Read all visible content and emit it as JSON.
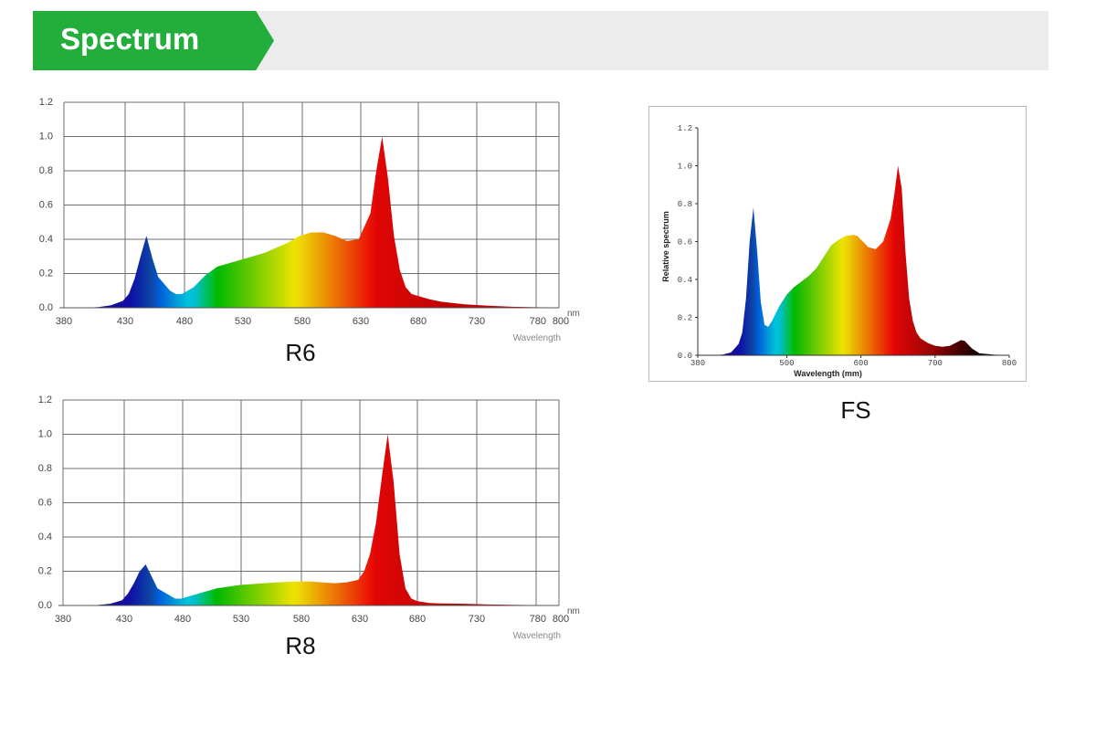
{
  "header": {
    "title": "Spectrum"
  },
  "charts": {
    "r6": {
      "caption": "R6",
      "unit": "nm",
      "xlabel": "Wavelength"
    },
    "r8": {
      "caption": "R8",
      "unit": "nm",
      "xlabel": "Wavelength"
    },
    "fs": {
      "caption": "FS",
      "xlabel": "Wavelength (mm)",
      "ylabel": "Relative spectrum"
    }
  },
  "chart_data": [
    {
      "id": "r6",
      "type": "area",
      "title": "R6",
      "xlabel": "Wavelength",
      "x_unit": "nm",
      "ylabel": "",
      "xlim": [
        380,
        800
      ],
      "ylim": [
        0,
        1.2
      ],
      "xticks": [
        "380",
        "430",
        "480",
        "530",
        "580",
        "630",
        "680",
        "730",
        "780",
        "800"
      ],
      "yticks": [
        "0.0",
        "0.2",
        "0.4",
        "0.6",
        "0.8",
        "1.0",
        "1.2"
      ],
      "grid": true,
      "x": [
        380,
        400,
        410,
        420,
        430,
        435,
        440,
        445,
        450,
        455,
        460,
        465,
        470,
        475,
        480,
        490,
        500,
        510,
        520,
        530,
        540,
        550,
        560,
        570,
        580,
        590,
        600,
        610,
        620,
        630,
        640,
        645,
        650,
        655,
        660,
        665,
        670,
        675,
        680,
        690,
        700,
        720,
        740,
        760,
        780,
        800
      ],
      "y": [
        0,
        0,
        0.005,
        0.015,
        0.04,
        0.08,
        0.17,
        0.3,
        0.42,
        0.29,
        0.18,
        0.14,
        0.1,
        0.08,
        0.08,
        0.12,
        0.19,
        0.24,
        0.26,
        0.28,
        0.3,
        0.32,
        0.35,
        0.38,
        0.42,
        0.44,
        0.44,
        0.42,
        0.39,
        0.4,
        0.55,
        0.8,
        1.0,
        0.75,
        0.42,
        0.22,
        0.12,
        0.08,
        0.07,
        0.05,
        0.035,
        0.02,
        0.012,
        0.006,
        0.003,
        0.001
      ]
    },
    {
      "id": "r8",
      "type": "area",
      "title": "R8",
      "xlabel": "Wavelength",
      "x_unit": "nm",
      "ylabel": "",
      "xlim": [
        380,
        800
      ],
      "ylim": [
        0,
        1.2
      ],
      "xticks": [
        "380",
        "430",
        "480",
        "530",
        "580",
        "630",
        "680",
        "730",
        "780",
        "800"
      ],
      "yticks": [
        "0.0",
        "0.2",
        "0.4",
        "0.6",
        "0.8",
        "1.0",
        "1.2"
      ],
      "grid": true,
      "x": [
        380,
        400,
        410,
        420,
        430,
        435,
        440,
        445,
        450,
        455,
        460,
        465,
        470,
        475,
        480,
        490,
        500,
        510,
        520,
        530,
        540,
        550,
        560,
        570,
        580,
        590,
        600,
        610,
        620,
        630,
        635,
        640,
        645,
        650,
        655,
        660,
        665,
        670,
        675,
        680,
        690,
        700,
        720,
        740,
        760,
        780,
        800
      ],
      "y": [
        0,
        0,
        0.003,
        0.01,
        0.03,
        0.07,
        0.13,
        0.2,
        0.24,
        0.17,
        0.1,
        0.08,
        0.06,
        0.04,
        0.04,
        0.06,
        0.08,
        0.1,
        0.11,
        0.12,
        0.125,
        0.13,
        0.135,
        0.138,
        0.14,
        0.14,
        0.135,
        0.13,
        0.135,
        0.15,
        0.2,
        0.3,
        0.48,
        0.75,
        1.0,
        0.72,
        0.3,
        0.1,
        0.04,
        0.025,
        0.015,
        0.012,
        0.01,
        0.006,
        0.004,
        0.002,
        0.001
      ]
    },
    {
      "id": "fs",
      "type": "area",
      "title": "",
      "xlabel": "Wavelength (mm)",
      "ylabel": "Relative spectrum",
      "xlim": [
        380,
        800
      ],
      "ylim": [
        0,
        1.2
      ],
      "xticks": [
        "380",
        "500",
        "600",
        "700",
        "800"
      ],
      "yticks": [
        "0.0",
        "0.2",
        "0.4",
        "0.6",
        "0.8",
        "1.0",
        "1.2"
      ],
      "grid": false,
      "x": [
        380,
        405,
        415,
        425,
        435,
        440,
        445,
        450,
        455,
        460,
        465,
        470,
        475,
        480,
        490,
        500,
        510,
        520,
        530,
        540,
        550,
        560,
        570,
        580,
        590,
        595,
        600,
        610,
        620,
        630,
        640,
        645,
        650,
        655,
        660,
        665,
        670,
        675,
        680,
        690,
        700,
        710,
        720,
        730,
        735,
        740,
        750,
        760,
        780,
        800
      ],
      "y": [
        0,
        0,
        0.005,
        0.015,
        0.06,
        0.12,
        0.3,
        0.6,
        0.78,
        0.55,
        0.28,
        0.16,
        0.15,
        0.18,
        0.26,
        0.32,
        0.36,
        0.39,
        0.42,
        0.46,
        0.52,
        0.58,
        0.61,
        0.63,
        0.635,
        0.63,
        0.61,
        0.57,
        0.56,
        0.6,
        0.72,
        0.85,
        1.0,
        0.88,
        0.55,
        0.3,
        0.18,
        0.12,
        0.09,
        0.065,
        0.05,
        0.045,
        0.05,
        0.07,
        0.08,
        0.075,
        0.035,
        0.01,
        0.003,
        0.001
      ]
    }
  ]
}
